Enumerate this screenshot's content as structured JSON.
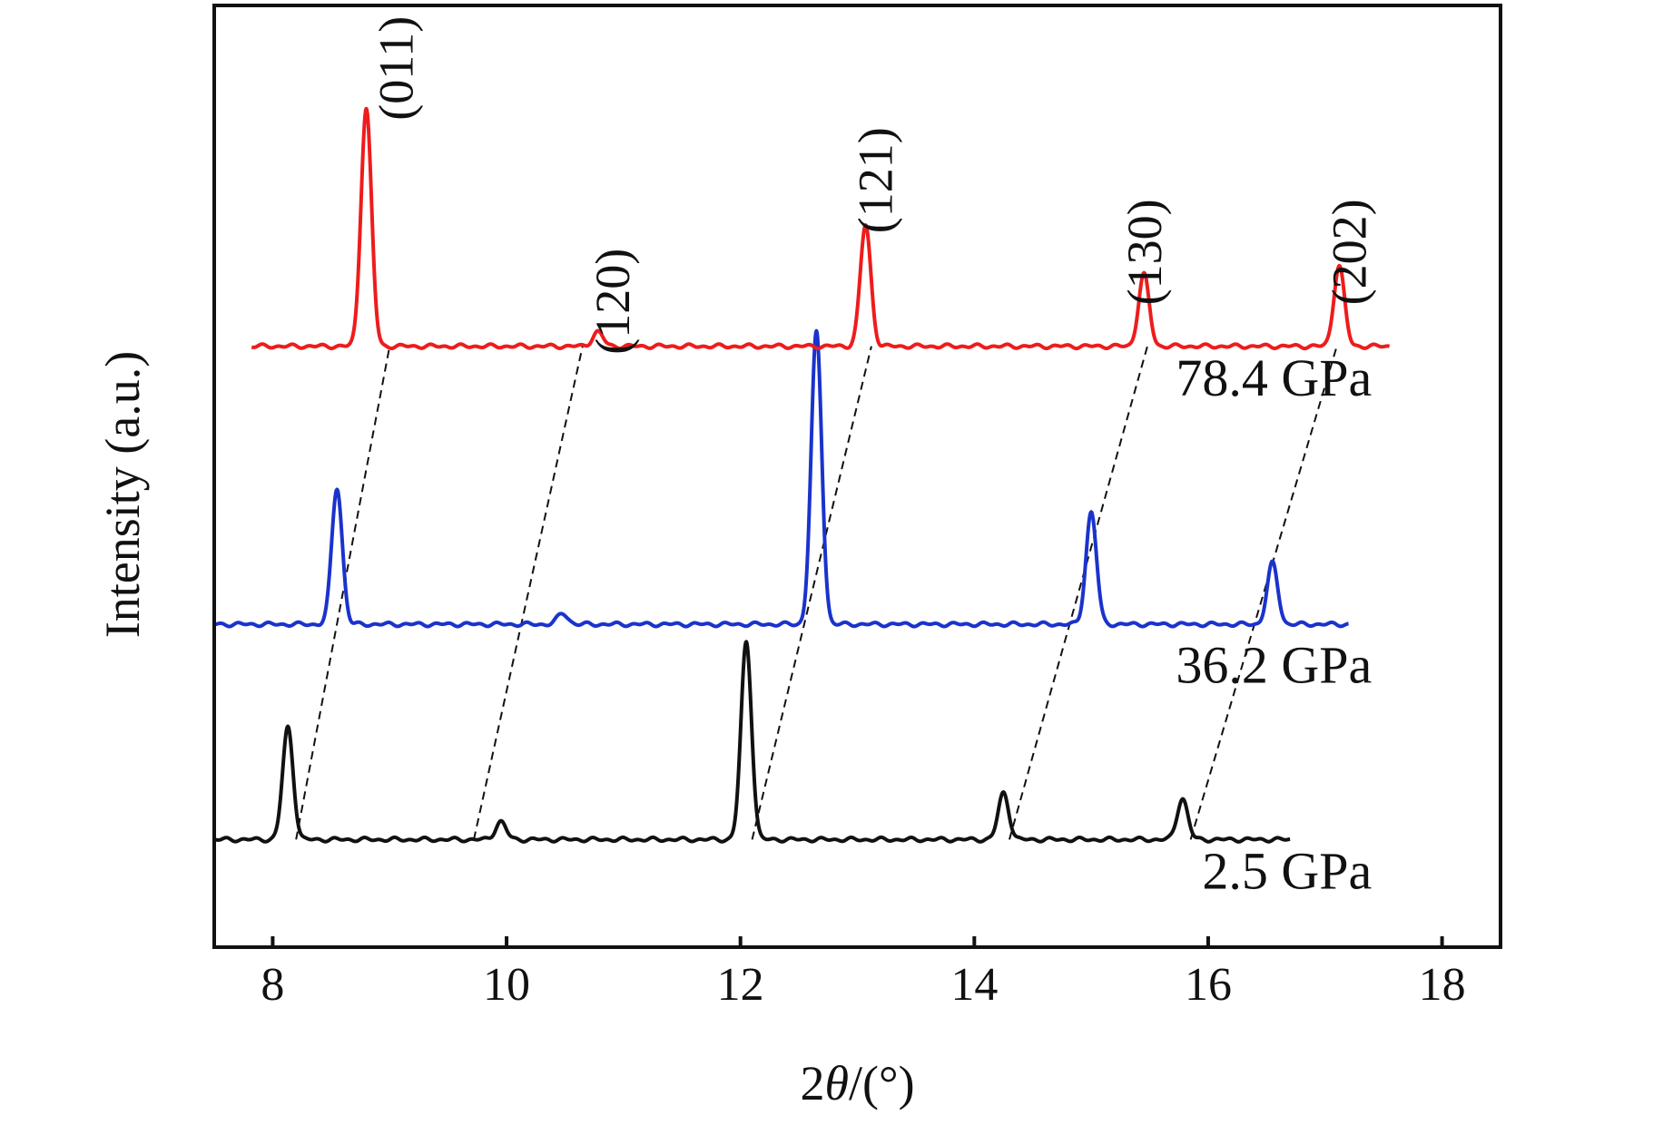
{
  "chart_data": {
    "type": "line",
    "title": "",
    "xlabel": "2θ/(°)",
    "xlabel_parts": {
      "prefix": "2",
      "symbol": "θ",
      "suffix": "/(°)"
    },
    "ylabel": "Intensity (a.u.)",
    "xlim": [
      7.5,
      18.5
    ],
    "xticks": [
      8,
      10,
      12,
      14,
      16,
      18
    ],
    "yticks_shown": false,
    "grid": false,
    "legend": "none",
    "series": [
      {
        "name": "2.5 GPa",
        "color": "#111111",
        "x_range": [
          7.5,
          16.7
        ],
        "baseline": 0.0,
        "peaks": [
          {
            "x": 8.13,
            "height": 1.25
          },
          {
            "x": 9.95,
            "height": 0.2
          },
          {
            "x": 12.05,
            "height": 2.2
          },
          {
            "x": 14.25,
            "height": 0.52
          },
          {
            "x": 15.78,
            "height": 0.46
          }
        ]
      },
      {
        "name": "36.2 GPa",
        "color": "#1a33cc",
        "x_range": [
          7.5,
          17.2
        ],
        "baseline": 2.4,
        "peaks": [
          {
            "x": 8.55,
            "height": 1.52
          },
          {
            "x": 10.48,
            "height": 0.12
          },
          {
            "x": 12.65,
            "height": 3.25
          },
          {
            "x": 15.0,
            "height": 1.25
          },
          {
            "x": 16.55,
            "height": 0.68
          }
        ]
      },
      {
        "name": "78.4 GPa",
        "color": "#ee1c1c",
        "x_range": [
          7.82,
          17.55
        ],
        "baseline": 5.5,
        "peaks": [
          {
            "x": 8.8,
            "height": 2.65
          },
          {
            "x": 10.78,
            "height": 0.16
          },
          {
            "x": 13.07,
            "height": 1.35
          },
          {
            "x": 15.45,
            "height": 0.8
          },
          {
            "x": 17.12,
            "height": 0.9
          }
        ]
      }
    ],
    "peak_labels": [
      {
        "text": "(011)",
        "x": 9.1,
        "y": 8.6
      },
      {
        "text": "(120)",
        "x": 10.95,
        "y": 6.0
      },
      {
        "text": "(121)",
        "x": 13.2,
        "y": 7.35
      },
      {
        "text": "(130)",
        "x": 15.5,
        "y": 6.55
      },
      {
        "text": "(202)",
        "x": 17.25,
        "y": 6.55
      }
    ],
    "tracking_lines": [
      {
        "from": [
          8.2,
          0.0
        ],
        "to": [
          9.0,
          5.5
        ]
      },
      {
        "from": [
          9.72,
          0.0
        ],
        "to": [
          10.65,
          5.5
        ]
      },
      {
        "from": [
          12.1,
          0.0
        ],
        "to": [
          13.12,
          5.5
        ]
      },
      {
        "from": [
          14.3,
          0.0
        ],
        "to": [
          15.48,
          5.5
        ]
      },
      {
        "from": [
          15.85,
          0.0
        ],
        "to": [
          17.1,
          5.5
        ]
      }
    ],
    "series_labels": [
      {
        "text": "78.4 GPa",
        "x": 17.4,
        "y": 4.95
      },
      {
        "text": "36.2 GPa",
        "x": 17.4,
        "y": 1.75
      },
      {
        "text": "2.5 GPa",
        "x": 17.4,
        "y": -0.55
      }
    ]
  }
}
